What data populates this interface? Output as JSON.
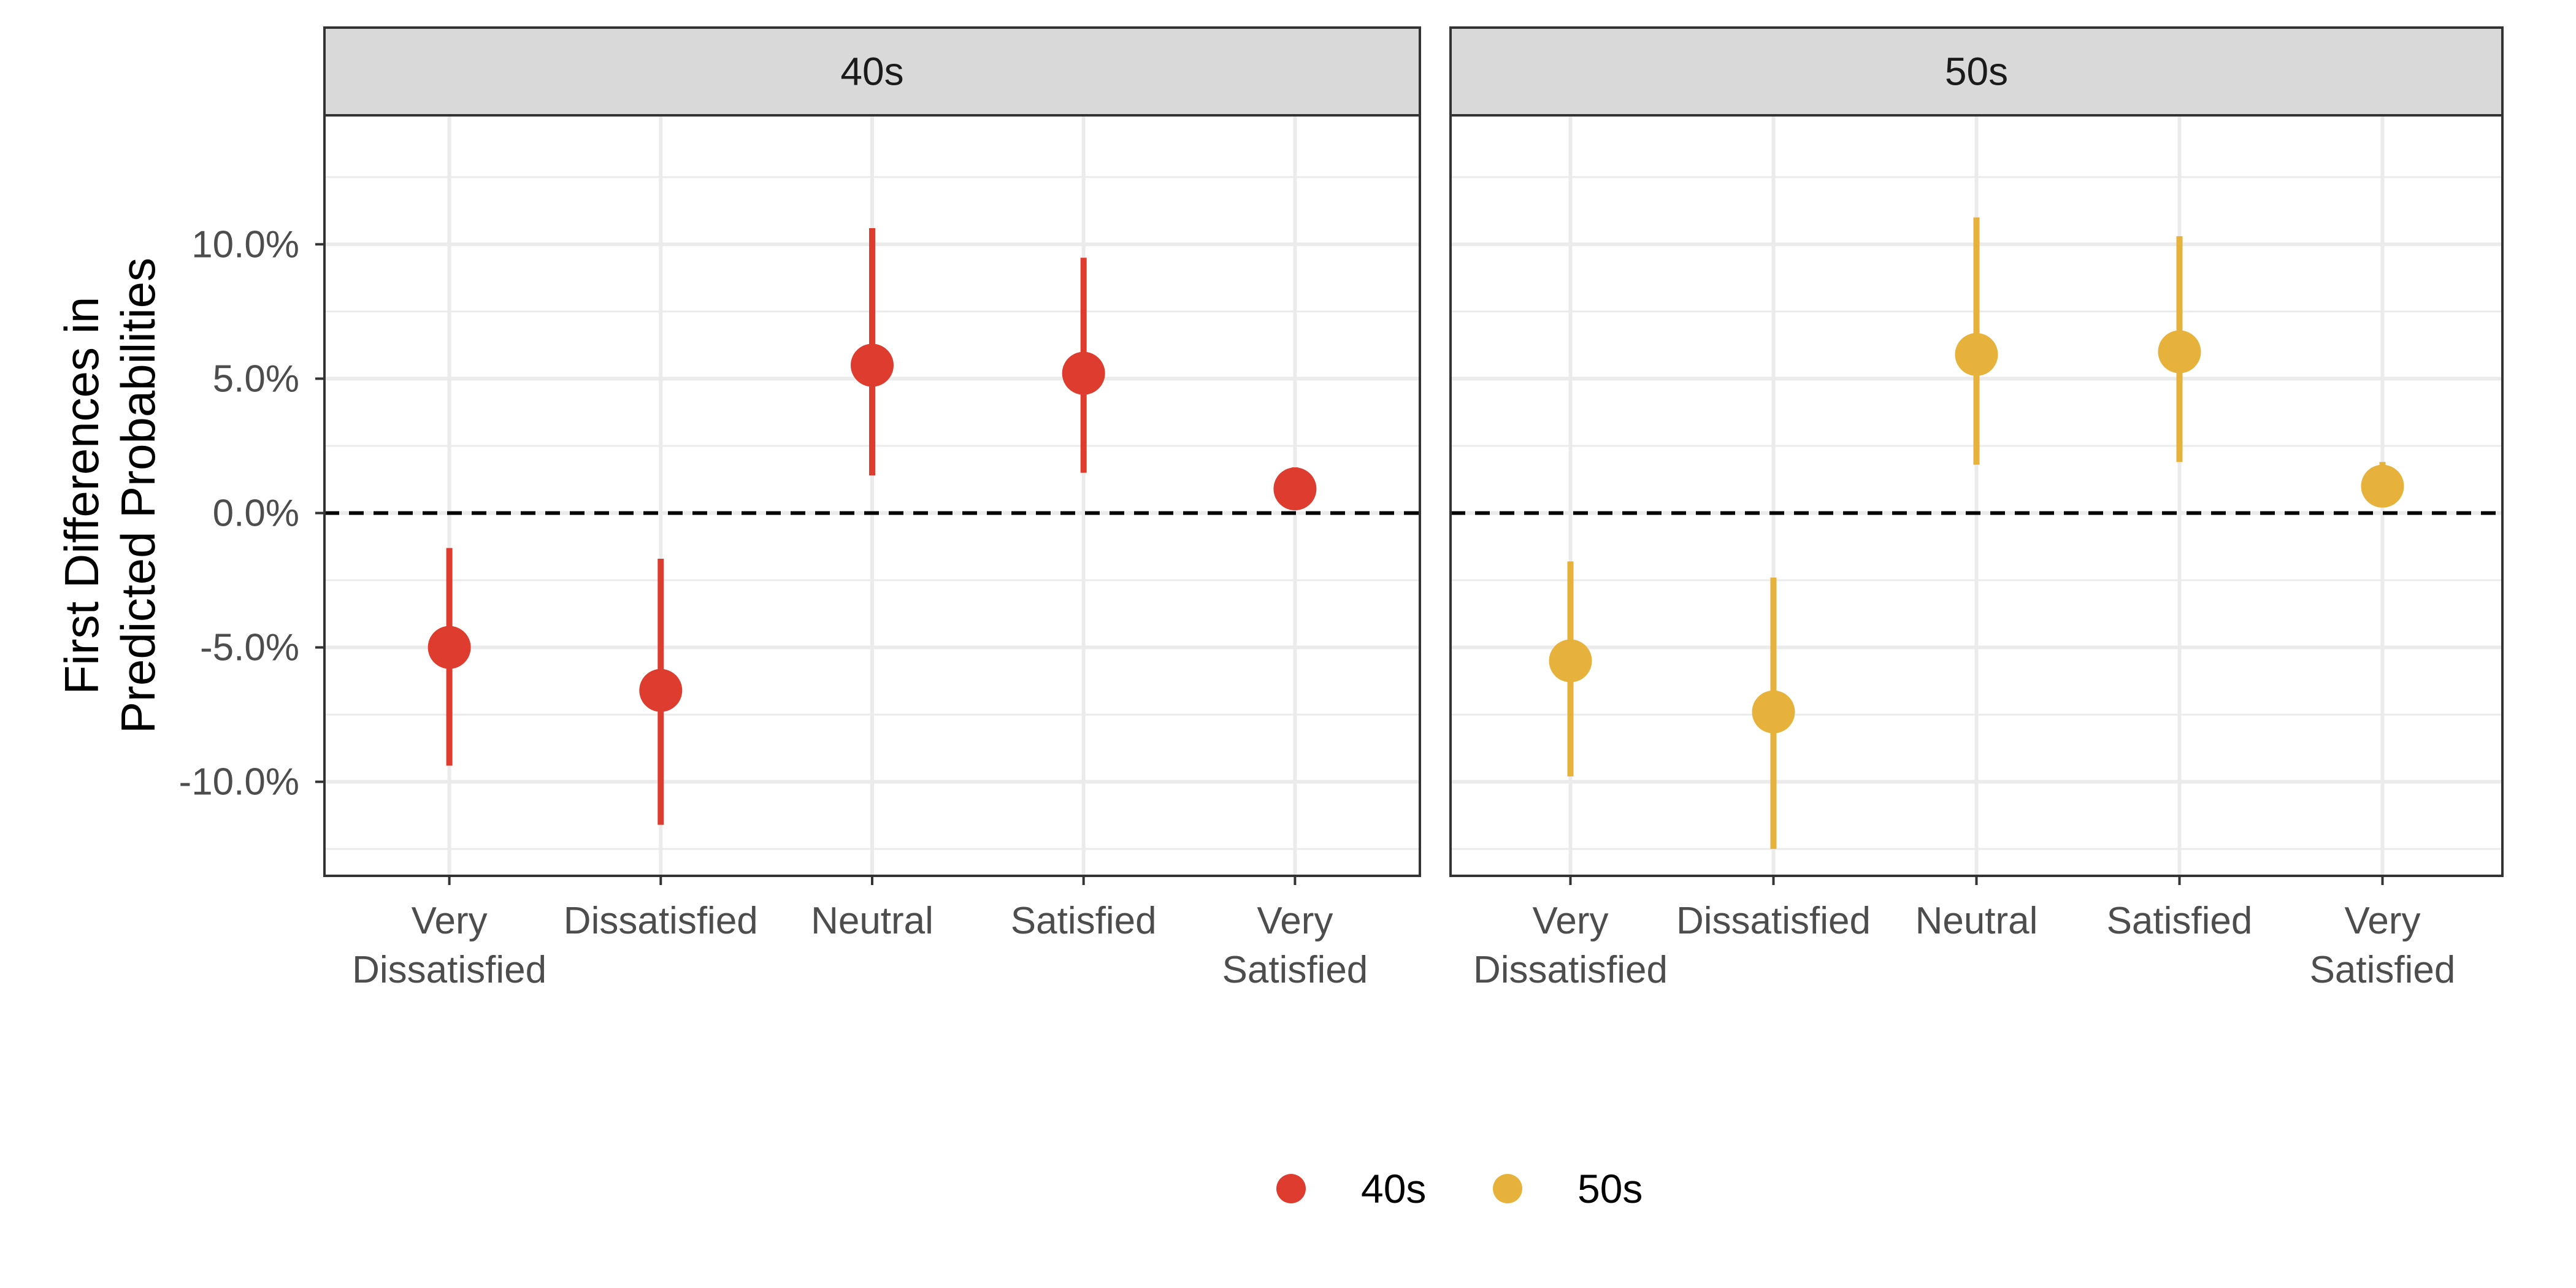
{
  "chart_data": {
    "type": "scatter",
    "subtype": "point-range faceted",
    "ylabel_lines": [
      "First Differences in",
      "Predicted Probabilities"
    ],
    "xlabel": "",
    "ylim": [
      -13.5,
      14.8
    ],
    "y_ticks": [
      -10,
      -5,
      0,
      5,
      10
    ],
    "y_tick_labels": [
      "-10.0%",
      "-5.0%",
      "0.0%",
      "5.0%",
      "10.0%"
    ],
    "categories": [
      "Very Dissatisfied",
      "Dissatisfied",
      "Neutral",
      "Satisfied",
      "Very Satisfied"
    ],
    "category_label_lines": [
      [
        "Very",
        "Dissatisfied"
      ],
      [
        "Dissatisfied"
      ],
      [
        "Neutral"
      ],
      [
        "Satisfied"
      ],
      [
        "Very",
        "Satisfied"
      ]
    ],
    "reference_line": 0,
    "grid": true,
    "legend_position": "bottom",
    "panels": [
      {
        "label": "40s",
        "color": "#DD3C2E",
        "values": [
          -5.0,
          -6.6,
          5.5,
          5.2,
          0.9
        ],
        "lower": [
          -9.4,
          -11.6,
          1.4,
          1.5,
          0.5
        ],
        "upper": [
          -1.3,
          -1.7,
          10.6,
          9.5,
          1.7
        ]
      },
      {
        "label": "50s",
        "color": "#E7B23B",
        "values": [
          -5.5,
          -7.4,
          5.9,
          6.0,
          1.0
        ],
        "lower": [
          -9.8,
          -12.5,
          1.8,
          1.9,
          0.7
        ],
        "upper": [
          -1.8,
          -2.4,
          11.0,
          10.3,
          1.9
        ]
      }
    ],
    "legend": [
      {
        "label": "40s",
        "color": "#DD3C2E"
      },
      {
        "label": "50s",
        "color": "#E7B23B"
      }
    ]
  }
}
